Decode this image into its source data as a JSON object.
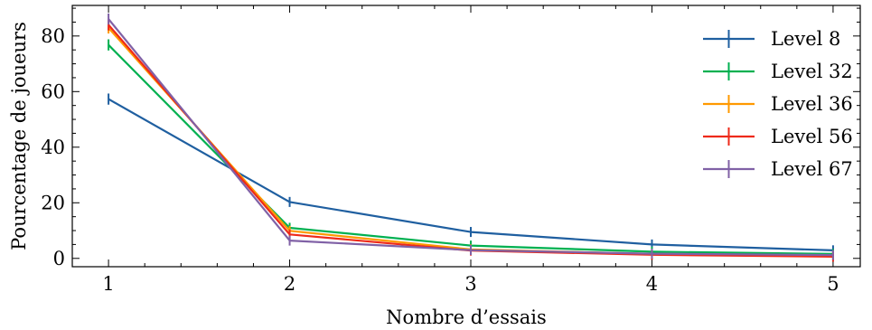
{
  "chart_data": {
    "type": "line",
    "xlabel": "Nombre d’essais",
    "ylabel": "Pourcentage de joueurs",
    "xlim": [
      0.8,
      5.15
    ],
    "ylim": [
      -3,
      91
    ],
    "xticks": [
      1,
      2,
      3,
      4,
      5
    ],
    "yticks": [
      0,
      20,
      40,
      60,
      80
    ],
    "x": [
      1,
      2,
      3,
      4,
      5
    ],
    "series": [
      {
        "name": "Level 8",
        "color": "#1f5fa0",
        "values": [
          57.3,
          20.3,
          9.5,
          5.0,
          2.9
        ],
        "errors": [
          2.0,
          1.8,
          1.8,
          1.8,
          1.8
        ]
      },
      {
        "name": "Level 32",
        "color": "#00b050",
        "values": [
          76.8,
          11.0,
          4.6,
          2.4,
          1.6
        ],
        "errors": [
          2.0,
          1.8,
          1.8,
          1.8,
          1.8
        ]
      },
      {
        "name": "Level 36",
        "color": "#ff9900",
        "values": [
          82.9,
          9.9,
          3.2,
          1.6,
          1.0
        ],
        "errors": [
          2.0,
          1.8,
          1.8,
          1.8,
          1.8
        ]
      },
      {
        "name": "Level 56",
        "color": "#ee2a1a",
        "values": [
          84.0,
          8.6,
          2.8,
          1.3,
          0.6
        ],
        "errors": [
          2.0,
          1.8,
          1.8,
          1.8,
          1.8
        ]
      },
      {
        "name": "Level 67",
        "color": "#8061a6",
        "values": [
          86.1,
          6.4,
          3.0,
          1.7,
          1.2
        ],
        "errors": [
          2.0,
          1.8,
          1.8,
          1.8,
          1.8
        ]
      }
    ],
    "legend_position": "top-right",
    "grid": false
  }
}
